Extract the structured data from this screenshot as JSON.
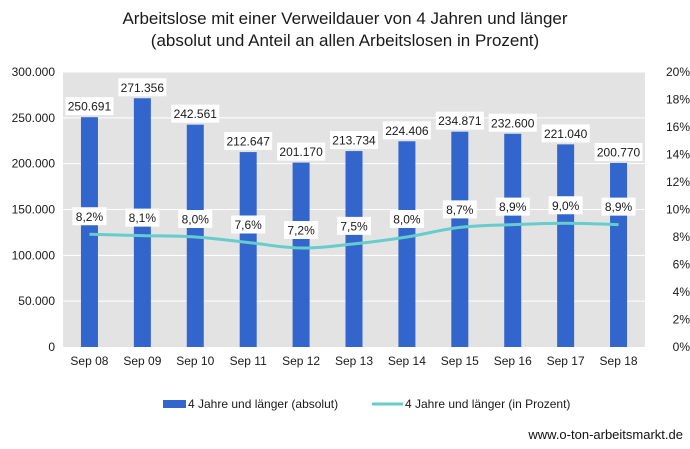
{
  "title_line1": "Arbeitslose mit einer Verweildauer von 4 Jahren und länger",
  "title_line2": "(absolut und Anteil an allen Arbeitslosen in Prozent)",
  "source": "www.o-ton-arbeitsmarkt.de",
  "colors": {
    "bar": "#3366cc",
    "line": "#66cccc",
    "plot_bg": "#e3e3e3",
    "grid": "#ffffff"
  },
  "chart_data": {
    "type": "bar",
    "categories": [
      "Sep 08",
      "Sep 09",
      "Sep 10",
      "Sep 11",
      "Sep 12",
      "Sep 13",
      "Sep 14",
      "Sep 15",
      "Sep 16",
      "Sep 17",
      "Sep 18"
    ],
    "series": [
      {
        "name": "4 Jahre und länger (absolut)",
        "type": "bar",
        "axis": "left",
        "values": [
          250691,
          271356,
          242561,
          212647,
          201170,
          213734,
          224406,
          234871,
          232600,
          221040,
          200770
        ],
        "labels": [
          "250.691",
          "271.356",
          "242.561",
          "212.647",
          "201.170",
          "213.734",
          "224.406",
          "234.871",
          "232.600",
          "221.040",
          "200.770"
        ]
      },
      {
        "name": "4 Jahre und länger (in Prozent)",
        "type": "line",
        "axis": "right",
        "values": [
          8.2,
          8.1,
          8.0,
          7.6,
          7.2,
          7.5,
          8.0,
          8.7,
          8.9,
          9.0,
          8.9
        ],
        "labels": [
          "8,2%",
          "8,1%",
          "8,0%",
          "7,6%",
          "7,2%",
          "7,5%",
          "8,0%",
          "8,7%",
          "8,9%",
          "9,0%",
          "8,9%"
        ]
      }
    ],
    "y_left": {
      "lim": [
        0,
        300000
      ],
      "ticks": [
        0,
        50000,
        100000,
        150000,
        200000,
        250000,
        300000
      ],
      "tick_labels": [
        "0",
        "50.000",
        "100.000",
        "150.000",
        "200.000",
        "250.000",
        "300.000"
      ]
    },
    "y_right": {
      "lim": [
        0,
        20
      ],
      "ticks": [
        0,
        2,
        4,
        6,
        8,
        10,
        12,
        14,
        16,
        18,
        20
      ],
      "tick_labels": [
        "0%",
        "2%",
        "4%",
        "6%",
        "8%",
        "10%",
        "12%",
        "14%",
        "16%",
        "18%",
        "20%"
      ]
    },
    "grid": true,
    "legend_position": "bottom"
  }
}
